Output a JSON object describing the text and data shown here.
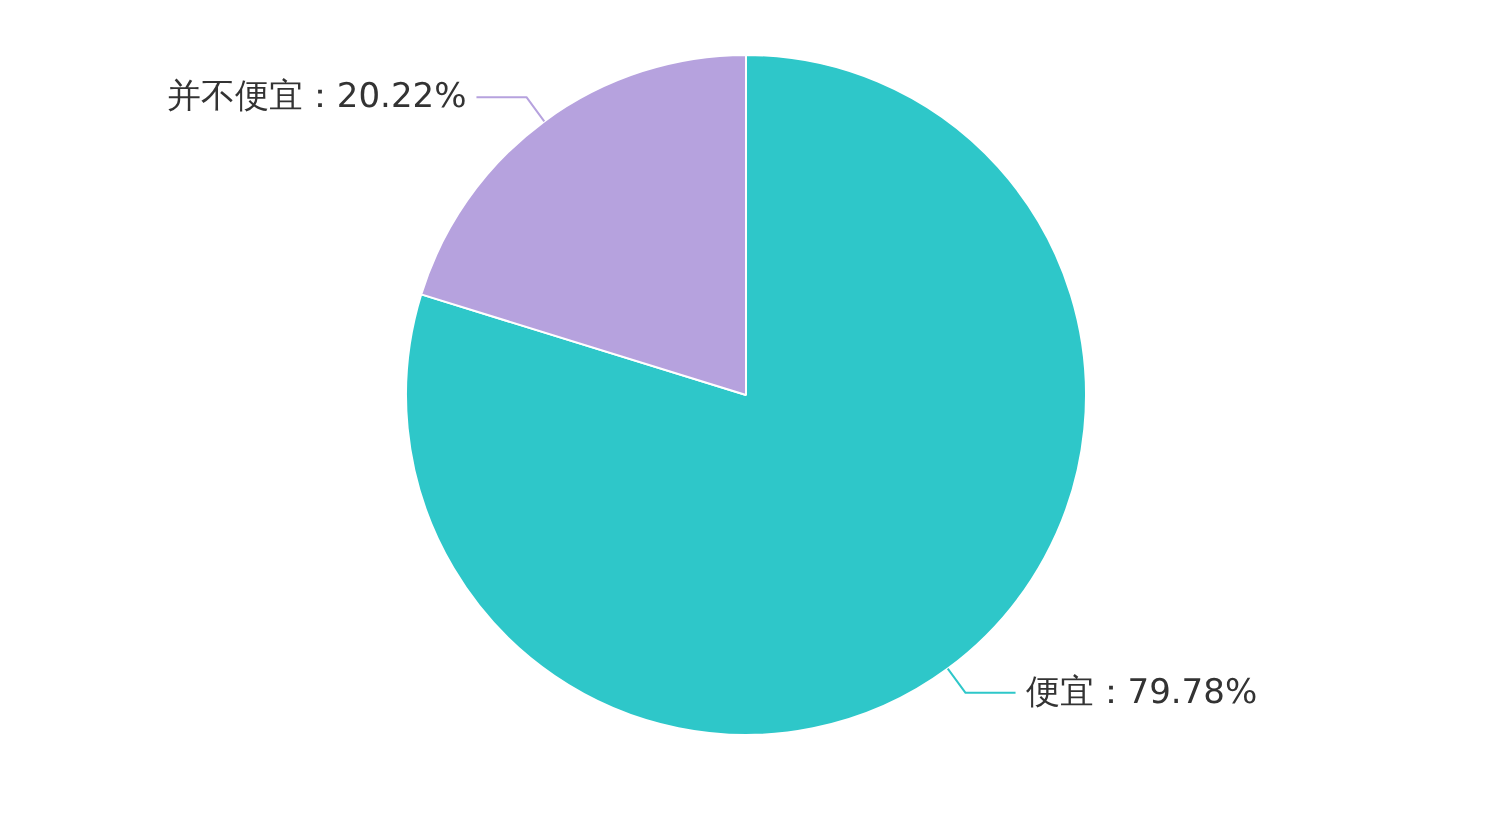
{
  "chart_data": {
    "type": "pie",
    "categories": [
      "便宜",
      "并不便宜"
    ],
    "values": [
      79.78,
      20.22
    ],
    "colors": [
      "#2ec7c9",
      "#b6a2de"
    ],
    "value_labels": [
      "：79.78%",
      "：20.22%"
    ]
  }
}
